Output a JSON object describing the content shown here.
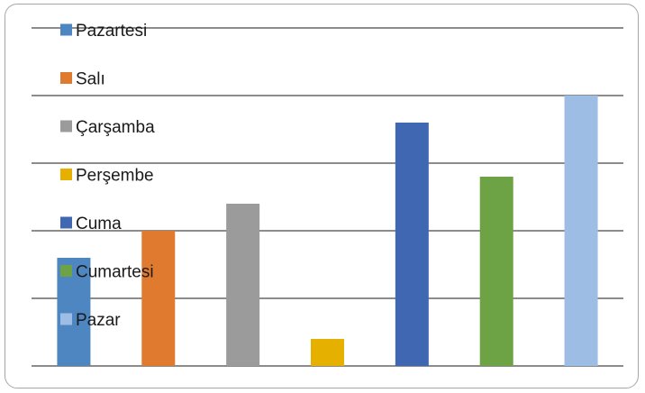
{
  "chart_data": {
    "type": "bar",
    "categories": [
      "Pazartesi",
      "Salı",
      "Çarşamba",
      "Perşembe",
      "Cuma",
      "Cumartesi",
      "Pazar"
    ],
    "values": [
      4,
      5,
      6,
      1,
      9,
      7,
      10
    ],
    "colors": [
      "#4e86c2",
      "#e07a2e",
      "#9b9b9b",
      "#e6b000",
      "#4068b2",
      "#6da245",
      "#9dbde5"
    ],
    "ylim": [
      0,
      12.5
    ],
    "grid": true,
    "legend": "left-overlay",
    "legend_entries": [
      "Pazartesi",
      "Salı",
      "Çarşamba",
      "Perşembe",
      "Cuma",
      "Cumartesi",
      "Pazar"
    ]
  }
}
